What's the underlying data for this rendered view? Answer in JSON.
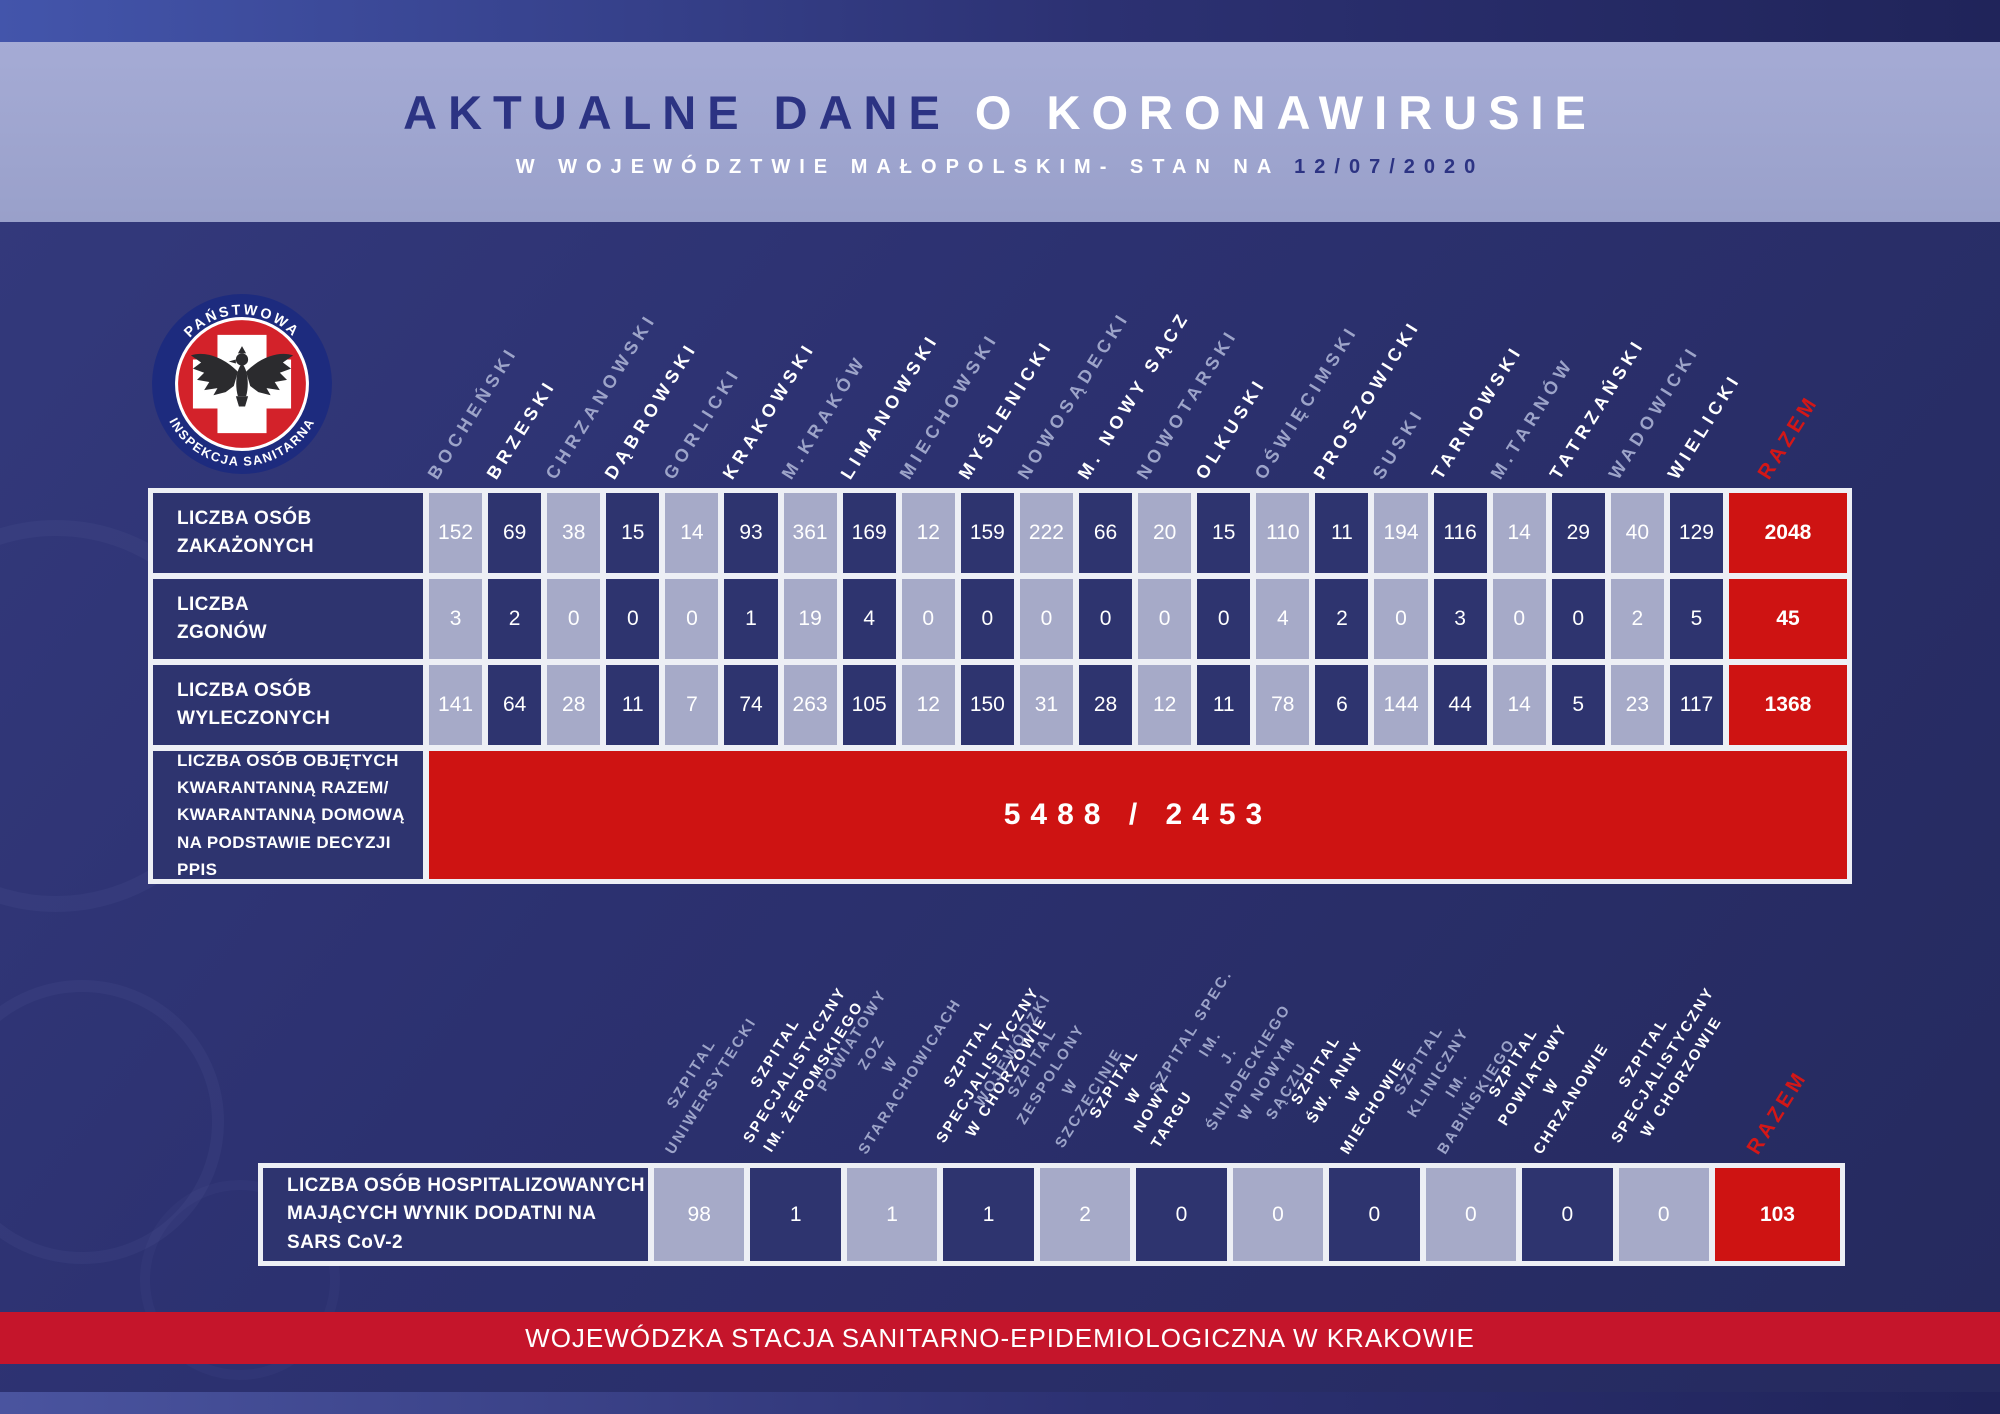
{
  "header": {
    "title_part1": "AKTUALNE DANE",
    "title_part2": " O KORONAWIRUSIE",
    "subtitle": "W WOJEWÓDZTWIE MAŁOPOLSKIM- STAN NA",
    "date": "12/07/2020"
  },
  "logo": {
    "arc_top": "PAŃSTWOWA",
    "arc_bottom": "INSPEKCJA SANITARNA"
  },
  "colors": {
    "accent_red": "#ce1312",
    "cell_dark": "#2e346f",
    "cell_light": "#a6aac8",
    "band_light": "#9aa1cb",
    "navy": "#2c3383",
    "footer_red": "#c5152b"
  },
  "table1": {
    "razem_label": "RAZEM",
    "columns": [
      {
        "label": "BOCHEŃSKI",
        "muted_header": true
      },
      {
        "label": "BRZESKI",
        "muted_header": false
      },
      {
        "label": "CHRZANOWSKI",
        "muted_header": true
      },
      {
        "label": "DĄBROWSKI",
        "muted_header": false
      },
      {
        "label": "GORLICKI",
        "muted_header": true
      },
      {
        "label": "KRAKOWSKI",
        "muted_header": false
      },
      {
        "label": "M.KRAKÓW",
        "muted_header": true
      },
      {
        "label": "LIMANOWSKI",
        "muted_header": false
      },
      {
        "label": "MIECHOWSKI",
        "muted_header": true
      },
      {
        "label": "MYŚLENICKI",
        "muted_header": false
      },
      {
        "label": "NOWOSĄDECKI",
        "muted_header": true
      },
      {
        "label": "M. NOWY SĄCZ",
        "muted_header": false
      },
      {
        "label": "NOWOTARSKI",
        "muted_header": true
      },
      {
        "label": "OLKUSKI",
        "muted_header": false
      },
      {
        "label": "OŚWIĘCIMSKI",
        "muted_header": true
      },
      {
        "label": "PROSZOWICKI",
        "muted_header": false
      },
      {
        "label": "SUSKI",
        "muted_header": true
      },
      {
        "label": "TARNOWSKI",
        "muted_header": false
      },
      {
        "label": "M.TARNÓW",
        "muted_header": true
      },
      {
        "label": "TATRZAŃSKI",
        "muted_header": false
      },
      {
        "label": "WADOWICKI",
        "muted_header": true
      },
      {
        "label": "WIELICKI",
        "muted_header": false
      }
    ],
    "rows": [
      {
        "label": "LICZBA OSÓB\nZAKAŻONYCH",
        "values": [
          "152",
          "69",
          "38",
          "15",
          "14",
          "93",
          "361",
          "169",
          "12",
          "159",
          "222",
          "66",
          "20",
          "15",
          "110",
          "11",
          "194",
          "116",
          "14",
          "29",
          "40",
          "129"
        ],
        "total": "2048"
      },
      {
        "label": "LICZBA\nZGONÓW",
        "values": [
          "3",
          "2",
          "0",
          "0",
          "0",
          "1",
          "19",
          "4",
          "0",
          "0",
          "0",
          "0",
          "0",
          "0",
          "4",
          "2",
          "0",
          "3",
          "0",
          "0",
          "2",
          "5"
        ],
        "total": "45"
      },
      {
        "label": "LICZBA OSÓB\nWYLECZONYCH",
        "values": [
          "141",
          "64",
          "28",
          "11",
          "7",
          "74",
          "263",
          "105",
          "12",
          "150",
          "31",
          "28",
          "12",
          "11",
          "78",
          "6",
          "144",
          "44",
          "14",
          "5",
          "23",
          "117"
        ],
        "total": "1368"
      }
    ],
    "quarantine": {
      "label": "LICZBA OSÓB OBJĘTYCH\nKWARANTANNĄ RAZEM/\nKWARANTANNĄ DOMOWĄ\nNA PODSTAWIE DECYZJI PPIS",
      "value": "5488 / 2453"
    }
  },
  "table2": {
    "razem_label": "RAZEM",
    "columns": [
      {
        "label": "SZPITAL\nUNIWERSYTECKI",
        "muted_header": true
      },
      {
        "label": "SZPITAL\nSPECJALISTYCZNY\nIM. ŻEROMSKIEGO",
        "muted_header": false
      },
      {
        "label": "POWIATOWY\nZOZ\nW STARACHOWICACH",
        "muted_header": true
      },
      {
        "label": "SZPITAL\nSPECJALISTYCZNY\nW CHORZOWIE",
        "muted_header": false
      },
      {
        "label": "WOJEWÓDZKI\nSZPITAL ZESPOLONY\nW SZCZECINIE",
        "muted_header": true
      },
      {
        "label": "SZPITAL\nW NOWY TARGU",
        "muted_header": false
      },
      {
        "label": "SZPITAL SPEC. IM.\nJ. ŚNIADECKIEGO\nW NOWYM SĄCZU",
        "muted_header": true
      },
      {
        "label": "SZPITAL ŚW. ANNY\nW MIECHOWIE",
        "muted_header": false
      },
      {
        "label": "SZPITAL KLINICZNY\nIM. BABIŃSKIEGO",
        "muted_header": true
      },
      {
        "label": "SZPITAL\nPOWIATOWY\nW CHRZANOWIE",
        "muted_header": false
      },
      {
        "label": "SZPITAL\nSPECJALISTYCZNY\nW CHORZOWIE",
        "muted_header": false
      }
    ],
    "row": {
      "label": "LICZBA OSÓB HOSPITALIZOWANYCH\nMAJĄCYCH WYNIK DODATNI NA SARS CoV-2",
      "values": [
        "98",
        "1",
        "1",
        "1",
        "2",
        "0",
        "0",
        "0",
        "0",
        "0",
        "0"
      ],
      "total": "103"
    }
  },
  "footer": {
    "text": "WOJEWÓDZKA STACJA SANITARNO-EPIDEMIOLOGICZNA W KRAKOWIE"
  },
  "chart_data": {
    "type": "table",
    "title": "AKTUALNE DANE O KORONAWIRUSIE W WOJEWÓDZTWIE MAŁOPOLSKIM - STAN NA 12/07/2020",
    "categories": [
      "BOCHEŃSKI",
      "BRZESKI",
      "CHRZANOWSKI",
      "DĄBROWSKI",
      "GORLICKI",
      "KRAKOWSKI",
      "M.KRAKÓW",
      "LIMANOWSKI",
      "MIECHOWSKI",
      "MYŚLENICKI",
      "NOWOSĄDECKI",
      "M. NOWY SĄCZ",
      "NOWOTARSKI",
      "OLKUSKI",
      "OŚWIĘCIMSKI",
      "PROSZOWICKI",
      "SUSKI",
      "TARNOWSKI",
      "M.TARNÓW",
      "TATRZAŃSKI",
      "WADOWICKI",
      "WIELICKI"
    ],
    "series": [
      {
        "name": "LICZBA OSÓB ZAKAŻONYCH",
        "values": [
          152,
          69,
          38,
          15,
          14,
          93,
          361,
          169,
          12,
          159,
          222,
          66,
          20,
          15,
          110,
          11,
          194,
          116,
          14,
          29,
          40,
          129
        ],
        "total": 2048
      },
      {
        "name": "LICZBA ZGONÓW",
        "values": [
          3,
          2,
          0,
          0,
          0,
          1,
          19,
          4,
          0,
          0,
          0,
          0,
          0,
          0,
          4,
          2,
          0,
          3,
          0,
          0,
          2,
          5
        ],
        "total": 45
      },
      {
        "name": "LICZBA OSÓB WYLECZONYCH",
        "values": [
          141,
          64,
          28,
          11,
          7,
          74,
          263,
          105,
          12,
          150,
          31,
          28,
          12,
          11,
          78,
          6,
          144,
          44,
          14,
          5,
          23,
          117
        ],
        "total": 1368
      }
    ],
    "quarantine_total_and_home": "5488 / 2453",
    "hospitals": {
      "categories": [
        "SZPITAL UNIWERSYTECKI",
        "SZPITAL SPECJALISTYCZNY IM. ŻEROMSKIEGO",
        "POWIATOWY ZOZ W STARACHOWICACH",
        "SZPITAL SPECJALISTYCZNY W CHORZOWIE",
        "WOJEWÓDZKI SZPITAL ZESPOLONY W SZCZECINIE",
        "SZPITAL W NOWY TARGU",
        "SZPITAL SPEC. IM. J. ŚNIADECKIEGO W NOWYM SĄCZU",
        "SZPITAL ŚW. ANNY W MIECHOWIE",
        "SZPITAL KLINICZNY IM. BABIŃSKIEGO",
        "SZPITAL POWIATOWY W CHRZANOWIE",
        "SZPITAL SPECJALISTYCZNY W CHORZOWIE"
      ],
      "series": [
        {
          "name": "LICZBA OSÓB HOSPITALIZOWANYCH MAJĄCYCH WYNIK DODATNI NA SARS CoV-2",
          "values": [
            98,
            1,
            1,
            1,
            2,
            0,
            0,
            0,
            0,
            0,
            0
          ],
          "total": 103
        }
      ]
    }
  }
}
